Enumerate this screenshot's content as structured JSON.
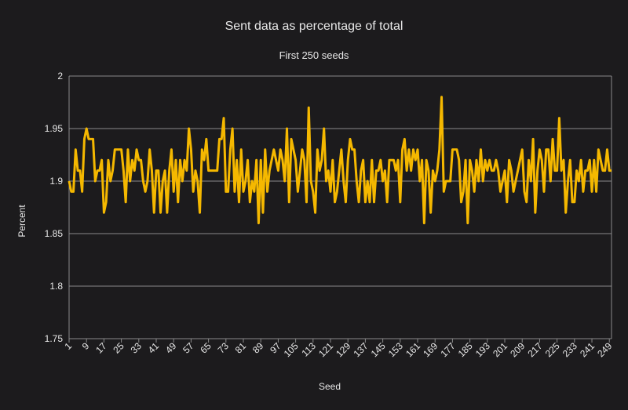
{
  "chart_data": {
    "type": "line",
    "title": "Sent data as percentage of total",
    "subtitle": "First 250 seeds",
    "xlabel": "Seed",
    "ylabel": "Percent",
    "ylim": [
      1.75,
      2
    ],
    "yticks": [
      "1.75",
      "1.8",
      "1.85",
      "1.9",
      "1.95",
      "2"
    ],
    "ytick_values": [
      1.75,
      1.8,
      1.85,
      1.9,
      1.95,
      2
    ],
    "xlim": [
      1,
      250
    ],
    "xtick_step": 8,
    "grid": true,
    "colors": {
      "line": "#f5b800",
      "grid": "#8a8a8a",
      "background": "#1c1b1d"
    },
    "series": [
      {
        "name": "Percent",
        "values": [
          1.9,
          1.89,
          1.89,
          1.93,
          1.91,
          1.91,
          1.89,
          1.94,
          1.95,
          1.94,
          1.94,
          1.94,
          1.9,
          1.91,
          1.91,
          1.92,
          1.87,
          1.88,
          1.92,
          1.9,
          1.91,
          1.93,
          1.93,
          1.93,
          1.93,
          1.91,
          1.88,
          1.93,
          1.9,
          1.92,
          1.91,
          1.93,
          1.92,
          1.92,
          1.9,
          1.89,
          1.9,
          1.93,
          1.91,
          1.87,
          1.91,
          1.91,
          1.87,
          1.9,
          1.91,
          1.87,
          1.91,
          1.93,
          1.89,
          1.92,
          1.88,
          1.92,
          1.9,
          1.92,
          1.91,
          1.95,
          1.93,
          1.89,
          1.91,
          1.9,
          1.87,
          1.93,
          1.92,
          1.94,
          1.91,
          1.91,
          1.91,
          1.91,
          1.91,
          1.94,
          1.94,
          1.96,
          1.89,
          1.89,
          1.93,
          1.95,
          1.89,
          1.92,
          1.88,
          1.93,
          1.89,
          1.9,
          1.92,
          1.88,
          1.9,
          1.89,
          1.92,
          1.86,
          1.92,
          1.87,
          1.93,
          1.89,
          1.91,
          1.92,
          1.93,
          1.92,
          1.91,
          1.93,
          1.92,
          1.9,
          1.95,
          1.88,
          1.94,
          1.93,
          1.92,
          1.89,
          1.91,
          1.93,
          1.92,
          1.88,
          1.97,
          1.9,
          1.89,
          1.87,
          1.93,
          1.91,
          1.92,
          1.95,
          1.9,
          1.91,
          1.89,
          1.92,
          1.88,
          1.89,
          1.91,
          1.93,
          1.9,
          1.88,
          1.92,
          1.94,
          1.93,
          1.93,
          1.9,
          1.88,
          1.91,
          1.92,
          1.88,
          1.9,
          1.88,
          1.92,
          1.88,
          1.91,
          1.91,
          1.92,
          1.9,
          1.91,
          1.88,
          1.92,
          1.92,
          1.92,
          1.91,
          1.92,
          1.88,
          1.93,
          1.94,
          1.91,
          1.93,
          1.91,
          1.93,
          1.92,
          1.93,
          1.9,
          1.92,
          1.86,
          1.92,
          1.91,
          1.87,
          1.91,
          1.9,
          1.91,
          1.93,
          1.98,
          1.89,
          1.9,
          1.9,
          1.9,
          1.93,
          1.93,
          1.93,
          1.92,
          1.88,
          1.89,
          1.92,
          1.86,
          1.92,
          1.91,
          1.89,
          1.92,
          1.9,
          1.93,
          1.9,
          1.92,
          1.91,
          1.92,
          1.91,
          1.91,
          1.92,
          1.91,
          1.89,
          1.9,
          1.91,
          1.88,
          1.92,
          1.91,
          1.89,
          1.9,
          1.91,
          1.92,
          1.93,
          1.89,
          1.88,
          1.92,
          1.9,
          1.94,
          1.87,
          1.91,
          1.93,
          1.92,
          1.89,
          1.93,
          1.93,
          1.9,
          1.94,
          1.91,
          1.91,
          1.96,
          1.91,
          1.92,
          1.87,
          1.9,
          1.92,
          1.88,
          1.88,
          1.91,
          1.9,
          1.92,
          1.89,
          1.91,
          1.91,
          1.92,
          1.89,
          1.92,
          1.89,
          1.93,
          1.92,
          1.91,
          1.91,
          1.93,
          1.91,
          1.91
        ]
      }
    ]
  }
}
